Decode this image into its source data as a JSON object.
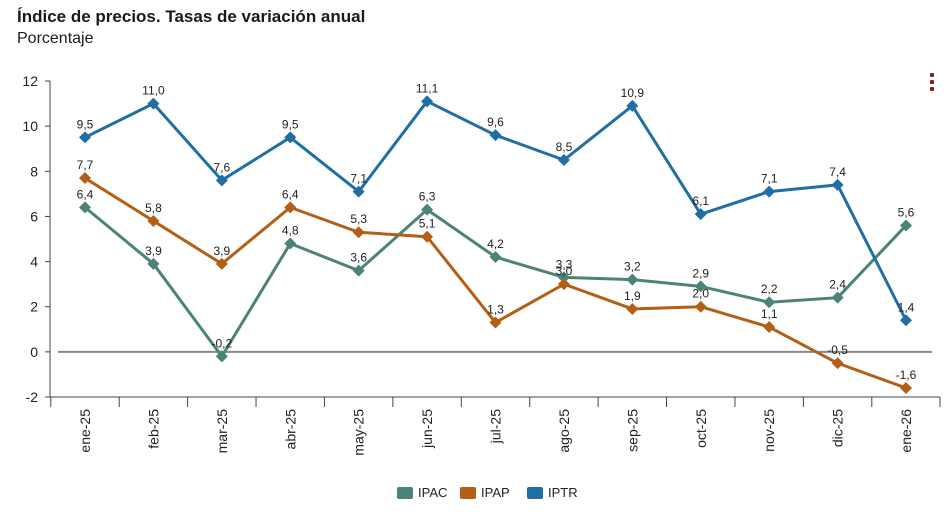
{
  "header": {
    "title": "Índice de precios. Tasas de variación anual",
    "subtitle": "Porcentaje"
  },
  "chart_data": {
    "type": "line",
    "title": "Índice de precios. Tasas de variación anual",
    "subtitle": "Porcentaje",
    "categories": [
      "ene-25",
      "feb-25",
      "mar-25",
      "abr-25",
      "may-25",
      "jun-25",
      "jul-25",
      "ago-25",
      "sep-25",
      "oct-25",
      "nov-25",
      "dic-25",
      "ene-26"
    ],
    "ylim": [
      -2,
      12
    ],
    "yticks": [
      -2,
      0,
      2,
      4,
      6,
      8,
      10,
      12
    ],
    "grid": false,
    "legend": "bottom-center",
    "series": [
      {
        "name": "IPAC",
        "color": "#4a8479",
        "values": [
          6.4,
          3.9,
          -0.2,
          4.8,
          3.6,
          6.3,
          4.2,
          3.3,
          3.2,
          2.9,
          2.2,
          2.4,
          5.6
        ],
        "labels": [
          "6,4",
          "3,9",
          "-0,2",
          "4,8",
          "3,6",
          "6,3",
          "4,2",
          "3,3",
          "3,2",
          "2,9",
          "2,2",
          "2,4",
          "5,6"
        ]
      },
      {
        "name": "IPAP",
        "color": "#b35f16",
        "values": [
          7.7,
          5.8,
          3.9,
          6.4,
          5.3,
          5.1,
          1.3,
          3.0,
          1.9,
          2.0,
          1.1,
          -0.5,
          -1.6
        ],
        "labels": [
          "7,7",
          "5,8",
          "3,9",
          "6,4",
          "5,3",
          "5,1",
          "1,3",
          "3,0",
          "1,9",
          "2,0",
          "1,1",
          "-0,5",
          "-1,6"
        ]
      },
      {
        "name": "IPTR",
        "color": "#1f6fa5",
        "values": [
          9.5,
          11.0,
          7.6,
          9.5,
          7.1,
          11.1,
          9.6,
          8.5,
          10.9,
          6.1,
          7.1,
          7.4,
          1.4
        ],
        "labels": [
          "9,5",
          "11,0",
          "7,6",
          "9,5",
          "7,1",
          "11,1",
          "9,6",
          "8,5",
          "10,9",
          "6,1",
          "7,1",
          "7,4",
          "1,4"
        ]
      }
    ]
  },
  "icons": {
    "menu": "kebab-menu-icon"
  }
}
